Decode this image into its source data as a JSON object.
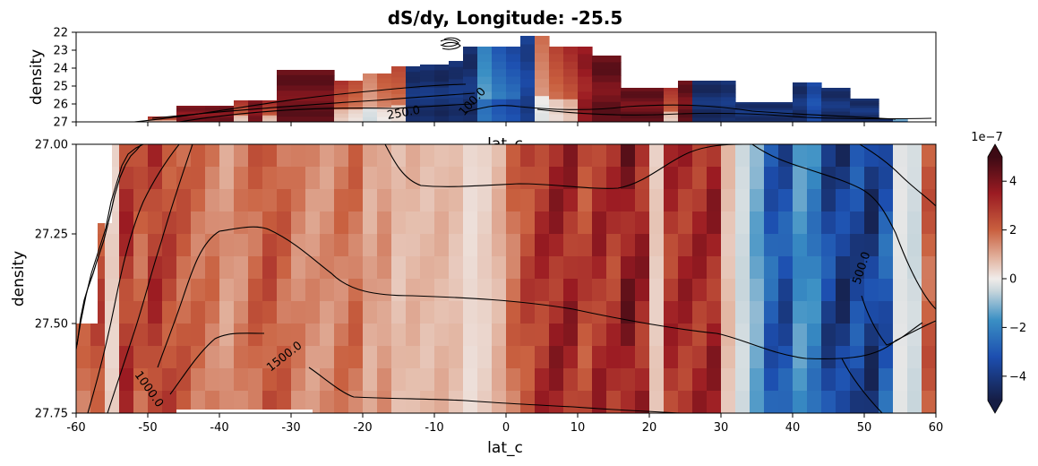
{
  "chart_data": {
    "type": "heatmap",
    "title": "dS/dy, Longitude: -25.5",
    "colormap": "balance (dark navy → blue → white → red → dark maroon)",
    "colorbar": {
      "ticks": [
        "−4",
        "−2",
        "0",
        "2",
        "4"
      ],
      "tick_values": [
        -4,
        -2,
        0,
        2,
        4
      ],
      "range": [
        -5,
        5
      ],
      "multiplier_label": "1e−7",
      "extend": "both"
    },
    "top_panel": {
      "xlabel": "lat_c",
      "ylabel": "density",
      "xlim": [
        -60,
        60
      ],
      "ylim": [
        27,
        22
      ],
      "y_ticks": [
        "22",
        "23",
        "24",
        "25",
        "26",
        "27"
      ],
      "x_ticks_labeled": false,
      "contour_labels": [
        "250.0",
        "100.0"
      ]
    },
    "bottom_panel": {
      "xlabel": "lat_c",
      "ylabel": "density",
      "xlim": [
        -60,
        60
      ],
      "ylim": [
        27.75,
        27.0
      ],
      "x_ticks": [
        "-60",
        "-50",
        "-40",
        "-30",
        "-20",
        "-10",
        "0",
        "10",
        "20",
        "30",
        "40",
        "50",
        "60"
      ],
      "y_ticks": [
        "27.00",
        "27.25",
        "27.50",
        "27.75"
      ],
      "contour_labels": [
        "1000.0",
        "1500.0",
        "500.0"
      ]
    },
    "column_lat_centers": [
      -59,
      -57,
      -55,
      -53,
      -51,
      -49,
      -47,
      -45,
      -43,
      -41,
      -39,
      -37,
      -35,
      -33,
      -31,
      -29,
      -27,
      -25,
      -23,
      -21,
      -19,
      -17,
      -15,
      -13,
      -11,
      -9,
      -7,
      -5,
      -3,
      -1,
      1,
      3,
      5,
      7,
      9,
      11,
      13,
      15,
      17,
      19,
      21,
      23,
      25,
      27,
      29,
      31,
      33,
      35,
      37,
      39,
      41,
      43,
      45,
      47,
      49,
      51,
      53,
      55,
      57,
      59
    ],
    "bottom_column_values": [
      2.0,
      3.0,
      0.5,
      3.5,
      2.5,
      3.5,
      3.0,
      2.5,
      2.2,
      2.0,
      1.4,
      1.8,
      2.4,
      2.8,
      2.4,
      1.8,
      1.6,
      1.6,
      2.0,
      2.2,
      1.2,
      1.5,
      0.8,
      1.0,
      0.9,
      1.0,
      0.8,
      0.3,
      0.5,
      1.0,
      2.2,
      3.0,
      3.6,
      4.0,
      4.0,
      3.0,
      3.8,
      3.5,
      4.6,
      4.0,
      0.6,
      3.6,
      3.8,
      3.8,
      4.0,
      0.8,
      -0.5,
      -1.5,
      -3.5,
      -4.0,
      -2.0,
      -2.5,
      -4.3,
      -4.8,
      -4.2,
      -4.8,
      -3.6,
      -0.2,
      -0.5,
      2.5
    ],
    "top_column_values": [
      null,
      null,
      null,
      null,
      null,
      3.2,
      3.0,
      4.2,
      4.2,
      4.3,
      4.4,
      3.0,
      4.2,
      3.2,
      4.6,
      4.6,
      4.6,
      4.6,
      3.0,
      2.4,
      1.5,
      2.2,
      2.5,
      -4.6,
      -4.5,
      -4.7,
      -4.5,
      -4.6,
      -2.0,
      -3.0,
      -3.5,
      -4.0,
      1.8,
      2.6,
      3.2,
      3.8,
      4.6,
      4.6,
      4.6,
      4.6,
      4.6,
      3.0,
      4.6,
      -4.7,
      -4.7,
      -4.5,
      -4.5,
      -4.6,
      -4.6,
      -4.6,
      -4.6,
      -3.6,
      -4.6,
      -4.6,
      -4.6,
      -4.6,
      -4.8,
      -1.5,
      null,
      null
    ],
    "top_column_top_density": [
      null,
      null,
      null,
      null,
      null,
      26.7,
      26.7,
      26.1,
      26.1,
      26.1,
      26.1,
      25.8,
      25.8,
      25.8,
      24.1,
      24.1,
      24.1,
      24.1,
      24.7,
      24.7,
      24.3,
      24.3,
      23.9,
      23.9,
      23.8,
      23.8,
      23.6,
      22.8,
      22.8,
      22.8,
      22.8,
      22.2,
      22.2,
      22.8,
      22.8,
      22.8,
      23.3,
      23.3,
      25.1,
      25.1,
      25.1,
      25.1,
      24.7,
      24.7,
      24.7,
      24.7,
      25.9,
      25.9,
      25.9,
      25.9,
      24.8,
      24.8,
      25.1,
      25.1,
      25.7,
      25.7,
      26.8,
      26.8,
      null,
      null
    ]
  }
}
